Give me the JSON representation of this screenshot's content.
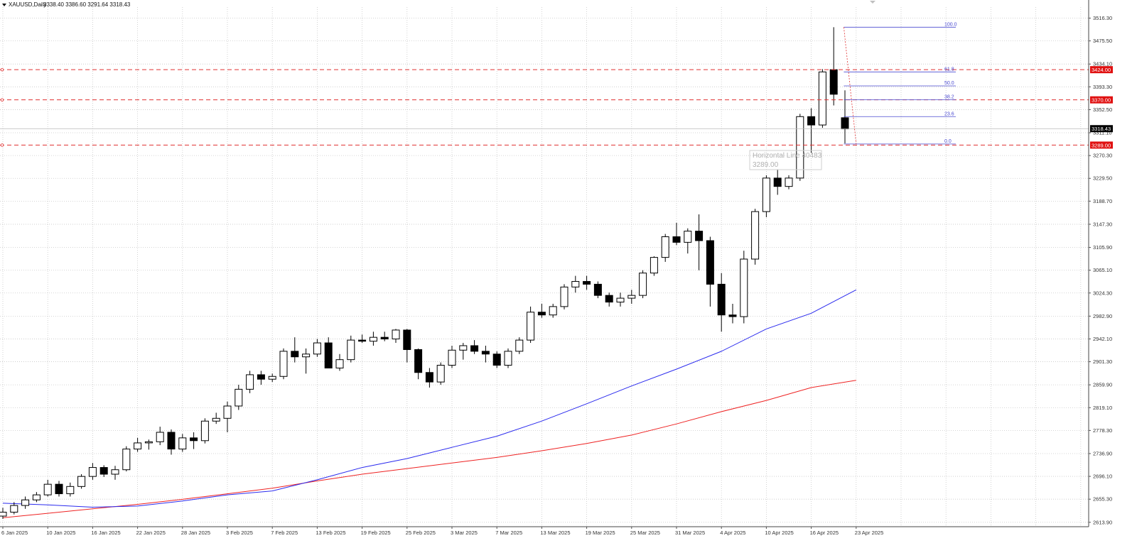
{
  "header": {
    "symbol_timeframe": "XAUUSD,Daily",
    "ohlc": "3338.40 3386.60 3291.64 3318.43"
  },
  "colors": {
    "bull_fill": "#ffffff",
    "bear_fill": "#000000",
    "candle_outline": "#000000",
    "ma_fast": "#2a2aee",
    "ma_slow": "#ee2222",
    "hline": "#e03030",
    "fib": "#4a4ad0",
    "grid": "#c8c8c8",
    "price_tag_bg": "#000000",
    "hline_tag_bg": "#e01010"
  },
  "tooltip": {
    "line1": "Horizontal Line 40483",
    "line2": "3289.00"
  },
  "chart_data": {
    "type": "candlestick",
    "symbol": "XAUUSD",
    "timeframe": "Daily",
    "y_ticks": [
      "3516.30",
      "3475.50",
      "3434.10",
      "3393.30",
      "3352.50",
      "3311.10",
      "3270.30",
      "3229.50",
      "3188.70",
      "3147.30",
      "3105.90",
      "3065.10",
      "3024.30",
      "2982.90",
      "2942.10",
      "2901.30",
      "2859.90",
      "2819.10",
      "2778.30",
      "2736.90",
      "2696.10",
      "2655.30",
      "2613.90"
    ],
    "ylim": [
      2606,
      3536
    ],
    "x_ticks": [
      {
        "label": "6 Jan 2025",
        "index": 0
      },
      {
        "label": "10 Jan 2025",
        "index": 4
      },
      {
        "label": "16 Jan 2025",
        "index": 8
      },
      {
        "label": "22 Jan 2025",
        "index": 12
      },
      {
        "label": "28 Jan 2025",
        "index": 16
      },
      {
        "label": "3 Feb 2025",
        "index": 20
      },
      {
        "label": "7 Feb 2025",
        "index": 24
      },
      {
        "label": "13 Feb 2025",
        "index": 28
      },
      {
        "label": "19 Feb 2025",
        "index": 32
      },
      {
        "label": "25 Feb 2025",
        "index": 36
      },
      {
        "label": "3 Mar 2025",
        "index": 40
      },
      {
        "label": "7 Mar 2025",
        "index": 44
      },
      {
        "label": "13 Mar 2025",
        "index": 48
      },
      {
        "label": "19 Mar 2025",
        "index": 52
      },
      {
        "label": "25 Mar 2025",
        "index": 56
      },
      {
        "label": "31 Mar 2025",
        "index": 60
      },
      {
        "label": "4 Apr 2025",
        "index": 64
      },
      {
        "label": "10 Apr 2025",
        "index": 68
      },
      {
        "label": "16 Apr 2025",
        "index": 72
      },
      {
        "label": "23 Apr 2025",
        "index": 76
      }
    ],
    "candles": [
      [
        2625,
        2640,
        2620,
        2632
      ],
      [
        2632,
        2650,
        2628,
        2644
      ],
      [
        2644,
        2660,
        2638,
        2654
      ],
      [
        2654,
        2668,
        2650,
        2663
      ],
      [
        2663,
        2690,
        2660,
        2682
      ],
      [
        2682,
        2688,
        2660,
        2665
      ],
      [
        2665,
        2685,
        2660,
        2678
      ],
      [
        2678,
        2700,
        2674,
        2696
      ],
      [
        2696,
        2720,
        2690,
        2712
      ],
      [
        2712,
        2716,
        2695,
        2700
      ],
      [
        2700,
        2715,
        2690,
        2708
      ],
      [
        2708,
        2750,
        2705,
        2745
      ],
      [
        2745,
        2765,
        2740,
        2756
      ],
      [
        2756,
        2762,
        2744,
        2758
      ],
      [
        2758,
        2785,
        2752,
        2775
      ],
      [
        2775,
        2780,
        2735,
        2745
      ],
      [
        2745,
        2772,
        2740,
        2765
      ],
      [
        2765,
        2775,
        2745,
        2760
      ],
      [
        2760,
        2800,
        2755,
        2795
      ],
      [
        2795,
        2810,
        2790,
        2800
      ],
      [
        2800,
        2830,
        2775,
        2822
      ],
      [
        2822,
        2860,
        2815,
        2852
      ],
      [
        2852,
        2885,
        2845,
        2878
      ],
      [
        2878,
        2885,
        2860,
        2870
      ],
      [
        2870,
        2880,
        2865,
        2875
      ],
      [
        2875,
        2925,
        2870,
        2920
      ],
      [
        2920,
        2945,
        2900,
        2910
      ],
      [
        2910,
        2925,
        2880,
        2915
      ],
      [
        2915,
        2942,
        2910,
        2935
      ],
      [
        2935,
        2945,
        2890,
        2890
      ],
      [
        2890,
        2915,
        2885,
        2905
      ],
      [
        2905,
        2948,
        2900,
        2940
      ],
      [
        2940,
        2950,
        2935,
        2938
      ],
      [
        2938,
        2955,
        2930,
        2945
      ],
      [
        2945,
        2955,
        2938,
        2942
      ],
      [
        2942,
        2960,
        2935,
        2958
      ],
      [
        2958,
        2960,
        2900,
        2923
      ],
      [
        2923,
        2925,
        2870,
        2882
      ],
      [
        2882,
        2890,
        2855,
        2865
      ],
      [
        2865,
        2900,
        2860,
        2895
      ],
      [
        2895,
        2930,
        2890,
        2922
      ],
      [
        2922,
        2935,
        2905,
        2930
      ],
      [
        2930,
        2940,
        2915,
        2920
      ],
      [
        2920,
        2930,
        2900,
        2915
      ],
      [
        2915,
        2920,
        2890,
        2895
      ],
      [
        2895,
        2925,
        2890,
        2920
      ],
      [
        2920,
        2945,
        2915,
        2940
      ],
      [
        2940,
        3000,
        2935,
        2990
      ],
      [
        2990,
        3005,
        2980,
        2985
      ],
      [
        2985,
        3005,
        2980,
        3000
      ],
      [
        3000,
        3040,
        2995,
        3035
      ],
      [
        3035,
        3055,
        3025,
        3045
      ],
      [
        3045,
        3055,
        3030,
        3040
      ],
      [
        3040,
        3045,
        3015,
        3020
      ],
      [
        3020,
        3025,
        3000,
        3008
      ],
      [
        3008,
        3025,
        3000,
        3015
      ],
      [
        3015,
        3030,
        3005,
        3020
      ],
      [
        3020,
        3065,
        3015,
        3060
      ],
      [
        3060,
        3090,
        3055,
        3088
      ],
      [
        3088,
        3130,
        3080,
        3125
      ],
      [
        3125,
        3150,
        3110,
        3115
      ],
      [
        3115,
        3140,
        3095,
        3135
      ],
      [
        3135,
        3165,
        3065,
        3118
      ],
      [
        3118,
        3125,
        3000,
        3040
      ],
      [
        3040,
        3060,
        2955,
        2985
      ],
      [
        2985,
        3005,
        2970,
        2982
      ],
      [
        2982,
        3100,
        2970,
        3085
      ],
      [
        3085,
        3175,
        3075,
        3170
      ],
      [
        3170,
        3235,
        3160,
        3230
      ],
      [
        3230,
        3245,
        3200,
        3215
      ],
      [
        3215,
        3235,
        3210,
        3230
      ],
      [
        3230,
        3345,
        3225,
        3340
      ],
      [
        3340,
        3355,
        3275,
        3325
      ],
      [
        3325,
        3425,
        3320,
        3420
      ],
      [
        3424,
        3500,
        3360,
        3380
      ],
      [
        3338,
        3387,
        3292,
        3318
      ]
    ],
    "ma_fast": [
      [
        0,
        2648
      ],
      [
        4,
        2645
      ],
      [
        8,
        2641
      ],
      [
        12,
        2643
      ],
      [
        16,
        2652
      ],
      [
        20,
        2663
      ],
      [
        24,
        2670
      ],
      [
        28,
        2690
      ],
      [
        32,
        2712
      ],
      [
        36,
        2728
      ],
      [
        40,
        2748
      ],
      [
        44,
        2768
      ],
      [
        48,
        2795
      ],
      [
        52,
        2826
      ],
      [
        56,
        2858
      ],
      [
        60,
        2888
      ],
      [
        64,
        2920
      ],
      [
        68,
        2960
      ],
      [
        72,
        2988
      ],
      [
        76,
        3030
      ]
    ],
    "ma_slow": [
      [
        0,
        2622
      ],
      [
        4,
        2630
      ],
      [
        8,
        2638
      ],
      [
        12,
        2646
      ],
      [
        16,
        2655
      ],
      [
        20,
        2665
      ],
      [
        24,
        2675
      ],
      [
        28,
        2688
      ],
      [
        32,
        2700
      ],
      [
        36,
        2710
      ],
      [
        40,
        2720
      ],
      [
        44,
        2730
      ],
      [
        48,
        2742
      ],
      [
        52,
        2755
      ],
      [
        56,
        2770
      ],
      [
        60,
        2790
      ],
      [
        64,
        2812
      ],
      [
        68,
        2832
      ],
      [
        72,
        2855
      ],
      [
        76,
        2868
      ]
    ],
    "horizontal_lines": [
      {
        "price": 3424.0,
        "label": "3424.00"
      },
      {
        "price": 3370.0,
        "label": "3370.00"
      },
      {
        "price": 3289.0,
        "label": "3289.00"
      }
    ],
    "current_price": {
      "price": 3318.43,
      "label": "3318.43"
    },
    "fibonacci": {
      "high": 3500,
      "low": 3291,
      "levels": [
        {
          "label": "100.0",
          "price": 3500
        },
        {
          "label": "61.8",
          "price": 3420
        },
        {
          "label": "50.0",
          "price": 3395
        },
        {
          "label": "38.2",
          "price": 3370
        },
        {
          "label": "23.6",
          "price": 3340
        },
        {
          "label": "0.0",
          "price": 3291
        }
      ]
    }
  }
}
